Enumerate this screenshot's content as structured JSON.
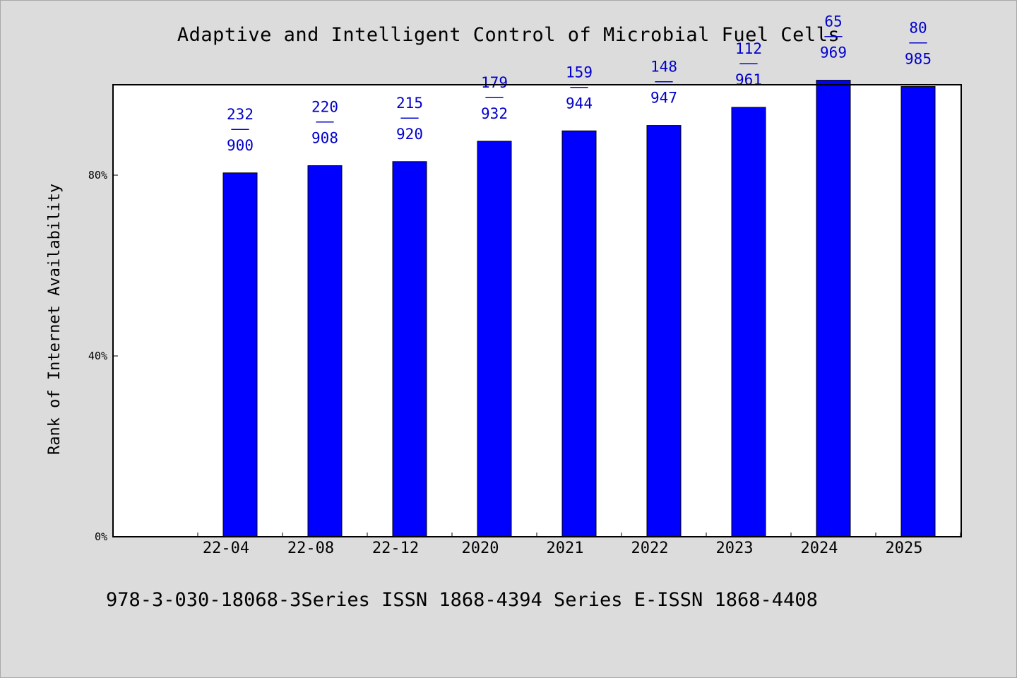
{
  "chart_data": {
    "type": "bar",
    "title": "Adaptive and Intelligent Control of Microbial Fuel Cells",
    "xlabel": "",
    "ylabel": "Rank of Internet Availability",
    "categories": [
      "22-04",
      "22-08",
      "22-12",
      "2020",
      "2021",
      "2022",
      "2023",
      "2024",
      "2025"
    ],
    "values": [
      80.5,
      82.1,
      83.0,
      87.5,
      89.8,
      91.0,
      95.0,
      101.0,
      99.6
    ],
    "ylim": [
      0,
      100
    ],
    "yticks": [
      {
        "value": 0,
        "label": "0%"
      },
      {
        "value": 40,
        "label": "40%"
      },
      {
        "value": 80,
        "label": "80%"
      }
    ],
    "data_labels": [
      {
        "top": "232",
        "sep": "——",
        "bottom": "900"
      },
      {
        "top": "220",
        "sep": "——",
        "bottom": "908"
      },
      {
        "top": "215",
        "sep": "——",
        "bottom": "920"
      },
      {
        "top": "179",
        "sep": "——",
        "bottom": "932"
      },
      {
        "top": "159",
        "sep": "——",
        "bottom": "944"
      },
      {
        "top": "148",
        "sep": "——",
        "bottom": "947"
      },
      {
        "top": "112",
        "sep": "——",
        "bottom": "961"
      },
      {
        "top": "65",
        "sep": "——",
        "bottom": "969"
      },
      {
        "top": "80",
        "sep": "——",
        "bottom": "985"
      }
    ],
    "grid": false,
    "bar_color": "#0000ff",
    "label_color": "#0000cc",
    "background": "#dcdcdc",
    "plot_background": "#ffffff"
  },
  "footer": "978-3-030-18068-3Series ISSN 1868-4394 Series E-ISSN 1868-4408"
}
